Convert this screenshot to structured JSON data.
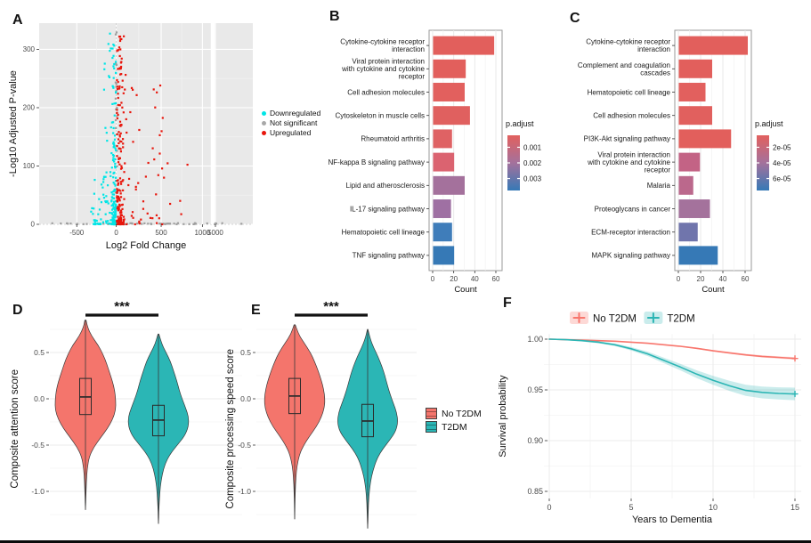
{
  "chart_data": [
    {
      "panel": "A",
      "type": "scatter",
      "kind": "volcano",
      "xlabel": "Log2 Fold Change",
      "ylabel": "-Log10 Adjusted P-value",
      "panel_bg": "#E9E9E9",
      "ylim": [
        0,
        345
      ],
      "yticks": [
        {
          "label": "0",
          "v": 0
        },
        {
          "label": "100",
          "v": 100
        },
        {
          "label": "200",
          "v": 200
        },
        {
          "label": "300",
          "v": 300
        }
      ],
      "xticks": [
        {
          "label": "-500",
          "v": -500
        },
        {
          "label": "0",
          "v": 0
        },
        {
          "label": "500",
          "v": 500
        },
        {
          "label": "1000",
          "v": 1000
        },
        {
          "label": "5000",
          "v": 1155
        }
      ],
      "x_anchor_scale": [
        [
          -900,
          0
        ],
        [
          -500,
          0.176
        ],
        [
          0,
          0.361
        ],
        [
          500,
          0.571
        ],
        [
          1000,
          0.764
        ],
        [
          1600,
          1.0
        ]
      ],
      "axis_break_x": [
        1100,
        1185
      ],
      "legend": [
        {
          "label": "Downregulated",
          "color": "#00E5E6"
        },
        {
          "label": "Not significant",
          "color": "#A8A8A8"
        },
        {
          "label": "Upregulated",
          "color": "#E8160C"
        }
      ],
      "seed": 11,
      "clusters": [
        {
          "name": "ns-baseline",
          "color": "#9E9E9E",
          "n": 55,
          "x": {
            "t": "u",
            "a": -780,
            "b": 1500
          },
          "y": {
            "t": "u",
            "a": 0,
            "b": 2
          }
        },
        {
          "name": "ns-column",
          "color": "#9E9E9E",
          "n": 25,
          "x": {
            "t": "n",
            "m": 0,
            "s": 6,
            "a": -14,
            "b": 14
          },
          "y": {
            "t": "u",
            "a": 0,
            "b": 335
          }
        },
        {
          "name": "down-stripe",
          "color": "#00E5E6",
          "n": 150,
          "x": {
            "t": "n",
            "m": -28,
            "s": 16,
            "a": -70,
            "b": -6
          },
          "y": {
            "t": "pow",
            "max": 330,
            "exp": 2.6
          }
        },
        {
          "name": "down-mid",
          "color": "#00E5E6",
          "n": 60,
          "x": {
            "t": "u",
            "a": -320,
            "b": -35
          },
          "y": {
            "t": "pow",
            "max": 90,
            "exp": 2.2
          }
        },
        {
          "name": "down-high",
          "color": "#00E5E6",
          "n": 12,
          "x": {
            "t": "u",
            "a": -160,
            "b": -30
          },
          "y": {
            "t": "u",
            "a": 120,
            "b": 330
          }
        },
        {
          "name": "up-stripe",
          "color": "#E8160C",
          "n": 170,
          "x": {
            "t": "n",
            "m": 35,
            "s": 22,
            "a": 8,
            "b": 95
          },
          "y": {
            "t": "pow",
            "max": 330,
            "exp": 2.4
          }
        },
        {
          "name": "up-scatter",
          "color": "#E8160C",
          "n": 55,
          "x": {
            "t": "u",
            "a": 60,
            "b": 520
          },
          "y": {
            "t": "pow",
            "max": 260,
            "exp": 2.0
          }
        },
        {
          "name": "up-outliers",
          "color": "#E8160C",
          "n": 6,
          "x": {
            "t": "u",
            "a": 500,
            "b": 830
          },
          "y": {
            "t": "u",
            "a": 5,
            "b": 120
          }
        }
      ]
    },
    {
      "panel": "B",
      "type": "bar",
      "orientation": "horizontal",
      "xlabel": "Count",
      "categories": [
        "Cytokine-cytokine receptor interaction",
        "Viral protein interaction with cytokine and cytokine receptor",
        "Cell adhesion molecules",
        "Cytoskeleton in muscle cells",
        "Rheumatoid arthritis",
        "NF-kappa B signaling pathway",
        "Lipid and atherosclerosis",
        "IL-17 signaling pathway",
        "Hematopoietic cell lineage",
        "TNF signaling pathway"
      ],
      "values": [
        58,
        31,
        30,
        35,
        18,
        20,
        30,
        17,
        18,
        20
      ],
      "bar_colors": [
        "#E25F5C",
        "#E25F5C",
        "#E2605E",
        "#E0605F",
        "#DF6264",
        "#DB6370",
        "#A4719C",
        "#9F70A3",
        "#3F7DBA",
        "#3679B6"
      ],
      "xticks": [
        0,
        20,
        40,
        60
      ],
      "xlim": [
        0,
        62
      ],
      "legend": {
        "title": "p.adjust",
        "ticks": [
          "0.001",
          "0.002",
          "0.003"
        ],
        "gradient": [
          "#E2605E",
          "#A4719C",
          "#3679B6"
        ]
      }
    },
    {
      "panel": "C",
      "type": "bar",
      "orientation": "horizontal",
      "xlabel": "Count",
      "categories": [
        "Cytokine-cytokine receptor interaction",
        "Complement and coagulation cascades",
        "Hematopoietic cell lineage",
        "Cell adhesion molecules",
        "PI3K-Akt signaling pathway",
        "Viral protein interaction with cytokine and cytokine receptor",
        "Malaria",
        "Proteoglycans in cancer",
        "ECM-receptor interaction",
        "MAPK signaling pathway"
      ],
      "values": [
        62,
        30,
        24,
        30,
        47,
        19,
        13,
        28,
        17,
        35
      ],
      "bar_colors": [
        "#E25F5C",
        "#E25F5C",
        "#E2605E",
        "#E1605E",
        "#E25F5C",
        "#C36385",
        "#BB688C",
        "#A4729C",
        "#7075AC",
        "#3679B6"
      ],
      "xticks": [
        0,
        20,
        40,
        60
      ],
      "xlim": [
        0,
        64
      ],
      "legend": {
        "title": "p.adjust",
        "ticks": [
          "2e-05",
          "4e-05",
          "6e-05"
        ],
        "gradient": [
          "#E2605E",
          "#A4719C",
          "#3679B6"
        ]
      }
    },
    {
      "panel": "D",
      "type": "violin",
      "ylabel": "Composite attention score",
      "significance": "***",
      "yticks": [
        {
          "label": "0.5",
          "v": 0.5
        },
        {
          "label": "0.0",
          "v": 0.0
        },
        {
          "label": "-0.5",
          "v": -0.5
        },
        {
          "label": "-1.0",
          "v": -1.0
        }
      ],
      "minor": [
        0.75,
        0.25,
        -0.25,
        -0.75,
        -1.25
      ],
      "groups": [
        {
          "name": "No T2DM",
          "color": "#F4756C",
          "range": [
            -1.2,
            0.85
          ],
          "box": {
            "q1": -0.17,
            "median": 0.02,
            "q3": 0.22
          },
          "profile": [
            [
              0.85,
              0.02
            ],
            [
              0.78,
              0.06
            ],
            [
              0.68,
              0.2
            ],
            [
              0.58,
              0.42
            ],
            [
              0.48,
              0.58
            ],
            [
              0.38,
              0.7
            ],
            [
              0.28,
              0.8
            ],
            [
              0.18,
              0.9
            ],
            [
              0.08,
              0.97
            ],
            [
              -0.02,
              1.0
            ],
            [
              -0.12,
              1.0
            ],
            [
              -0.22,
              0.9
            ],
            [
              -0.32,
              0.73
            ],
            [
              -0.42,
              0.5
            ],
            [
              -0.52,
              0.28
            ],
            [
              -0.62,
              0.13
            ],
            [
              -0.75,
              0.06
            ],
            [
              -0.9,
              0.03
            ],
            [
              -1.05,
              0.015
            ],
            [
              -1.2,
              0.004
            ]
          ]
        },
        {
          "name": "T2DM",
          "color": "#2BB6B5",
          "range": [
            -1.35,
            0.7
          ],
          "box": {
            "q1": -0.4,
            "median": -0.23,
            "q3": -0.07
          },
          "profile": [
            [
              0.7,
              0.015
            ],
            [
              0.6,
              0.1
            ],
            [
              0.5,
              0.25
            ],
            [
              0.4,
              0.4
            ],
            [
              0.3,
              0.5
            ],
            [
              0.2,
              0.6
            ],
            [
              0.1,
              0.68
            ],
            [
              0.0,
              0.78
            ],
            [
              -0.1,
              0.9
            ],
            [
              -0.2,
              1.0
            ],
            [
              -0.3,
              0.99
            ],
            [
              -0.4,
              0.87
            ],
            [
              -0.5,
              0.62
            ],
            [
              -0.6,
              0.38
            ],
            [
              -0.7,
              0.22
            ],
            [
              -0.82,
              0.12
            ],
            [
              -0.95,
              0.06
            ],
            [
              -1.1,
              0.03
            ],
            [
              -1.22,
              0.012
            ],
            [
              -1.35,
              0.004
            ]
          ]
        }
      ]
    },
    {
      "panel": "E",
      "type": "violin",
      "ylabel": "Composite processing speed score",
      "significance": "***",
      "yticks": [
        {
          "label": "0.5",
          "v": 0.5
        },
        {
          "label": "0.0",
          "v": 0.0
        },
        {
          "label": "-0.5",
          "v": -0.5
        },
        {
          "label": "-1.0",
          "v": -1.0
        }
      ],
      "minor": [
        0.75,
        0.25,
        -0.25,
        -0.75,
        -1.25
      ],
      "legend": [
        {
          "label": "No T2DM",
          "color": "#F4756C"
        },
        {
          "label": "T2DM",
          "color": "#2BB6B5"
        }
      ],
      "groups": [
        {
          "name": "No T2DM",
          "color": "#F4756C",
          "range": [
            -1.3,
            0.8
          ],
          "box": {
            "q1": -0.16,
            "median": 0.03,
            "q3": 0.22
          },
          "profile": [
            [
              0.8,
              0.02
            ],
            [
              0.7,
              0.12
            ],
            [
              0.6,
              0.32
            ],
            [
              0.5,
              0.52
            ],
            [
              0.4,
              0.66
            ],
            [
              0.3,
              0.78
            ],
            [
              0.2,
              0.88
            ],
            [
              0.1,
              0.96
            ],
            [
              0.0,
              1.0
            ],
            [
              -0.1,
              0.98
            ],
            [
              -0.2,
              0.88
            ],
            [
              -0.3,
              0.72
            ],
            [
              -0.4,
              0.5
            ],
            [
              -0.5,
              0.3
            ],
            [
              -0.6,
              0.16
            ],
            [
              -0.72,
              0.08
            ],
            [
              -0.85,
              0.04
            ],
            [
              -1.0,
              0.02
            ],
            [
              -1.15,
              0.008
            ],
            [
              -1.3,
              0.004
            ]
          ]
        },
        {
          "name": "T2DM",
          "color": "#2BB6B5",
          "range": [
            -1.4,
            0.75
          ],
          "box": {
            "q1": -0.41,
            "median": -0.24,
            "q3": -0.06
          },
          "profile": [
            [
              0.75,
              0.01
            ],
            [
              0.65,
              0.08
            ],
            [
              0.55,
              0.2
            ],
            [
              0.45,
              0.35
            ],
            [
              0.35,
              0.47
            ],
            [
              0.25,
              0.57
            ],
            [
              0.15,
              0.65
            ],
            [
              0.05,
              0.74
            ],
            [
              -0.05,
              0.85
            ],
            [
              -0.15,
              0.96
            ],
            [
              -0.25,
              1.0
            ],
            [
              -0.35,
              0.93
            ],
            [
              -0.45,
              0.72
            ],
            [
              -0.55,
              0.48
            ],
            [
              -0.65,
              0.3
            ],
            [
              -0.78,
              0.17
            ],
            [
              -0.9,
              0.09
            ],
            [
              -1.05,
              0.04
            ],
            [
              -1.2,
              0.02
            ],
            [
              -1.4,
              0.004
            ]
          ]
        }
      ]
    },
    {
      "panel": "F",
      "type": "km",
      "xlabel": "Years to Dementia",
      "ylabel": "Survival probability",
      "xticks": [
        0,
        5,
        10,
        15
      ],
      "yticks": [
        {
          "label": "1.00",
          "v": 1.0
        },
        {
          "label": "0.95",
          "v": 0.95
        },
        {
          "label": "0.90",
          "v": 0.9
        },
        {
          "label": "0.85",
          "v": 0.85
        }
      ],
      "xlim": [
        0,
        15
      ],
      "ylim": [
        0.843,
        1.005
      ],
      "series": [
        {
          "name": "No T2DM",
          "color": "#F8766D",
          "band": "rgba(248,118,109,0.28)",
          "x": [
            0,
            1,
            2,
            3,
            4,
            5,
            6,
            7,
            8,
            9,
            10,
            11,
            12,
            13,
            14,
            15
          ],
          "y": [
            1.0,
            0.9995,
            0.999,
            0.9985,
            0.998,
            0.997,
            0.996,
            0.9945,
            0.993,
            0.991,
            0.9885,
            0.9865,
            0.9845,
            0.983,
            0.982,
            0.981
          ],
          "half": [
            0.0002,
            0.0002,
            0.0003,
            0.0003,
            0.0004,
            0.0004,
            0.0005,
            0.0005,
            0.0006,
            0.0007,
            0.0008,
            0.0009,
            0.001,
            0.0011,
            0.0012,
            0.0013
          ]
        },
        {
          "name": "T2DM",
          "color": "#2BB5B4",
          "band": "rgba(43,181,180,0.25)",
          "x": [
            0,
            1,
            2,
            3,
            4,
            5,
            6,
            7,
            8,
            9,
            10,
            11,
            12,
            13,
            14,
            15
          ],
          "y": [
            1.0,
            0.9995,
            0.9985,
            0.997,
            0.9945,
            0.9905,
            0.9855,
            0.979,
            0.9725,
            0.9655,
            0.9595,
            0.954,
            0.9495,
            0.9475,
            0.9465,
            0.946
          ],
          "half": [
            0.0003,
            0.0005,
            0.0008,
            0.001,
            0.0013,
            0.0017,
            0.0022,
            0.0027,
            0.0032,
            0.0038,
            0.0044,
            0.005,
            0.0055,
            0.0058,
            0.006,
            0.0062
          ]
        }
      ]
    }
  ]
}
